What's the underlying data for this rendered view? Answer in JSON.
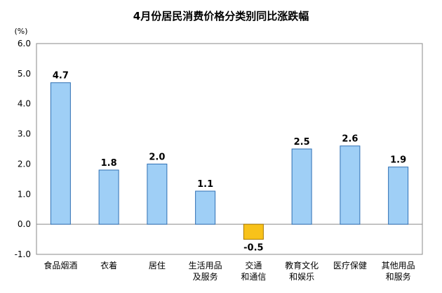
{
  "chart_data": {
    "type": "bar",
    "title": "4月份居民消费价格分类别同比涨跌幅",
    "unit": "(%)",
    "categories": [
      [
        "食品烟酒"
      ],
      [
        "衣着"
      ],
      [
        "居住"
      ],
      [
        "生活用品",
        "及服务"
      ],
      [
        "交通",
        "和通信"
      ],
      [
        "教育文化",
        "和娱乐"
      ],
      [
        "医疗保健"
      ],
      [
        "其他用品",
        "和服务"
      ]
    ],
    "values": [
      4.7,
      1.8,
      2.0,
      1.1,
      -0.5,
      2.5,
      2.6,
      1.9
    ],
    "value_labels": [
      "4.7",
      "1.8",
      "2.0",
      "1.1",
      "-0.5",
      "2.5",
      "2.6",
      "1.9"
    ],
    "yticks": [
      "6.0",
      "5.0",
      "4.0",
      "3.0",
      "2.0",
      "1.0",
      "0.0",
      "-1.0"
    ],
    "ylim": [
      -1.0,
      6.0
    ],
    "grid": false,
    "colors": {
      "positive": "#9FCFF6",
      "positive_stroke": "#2F6FB3",
      "negative": "#F8C21A",
      "negative_stroke": "#A87800",
      "frame": "#8A8A8A"
    }
  }
}
